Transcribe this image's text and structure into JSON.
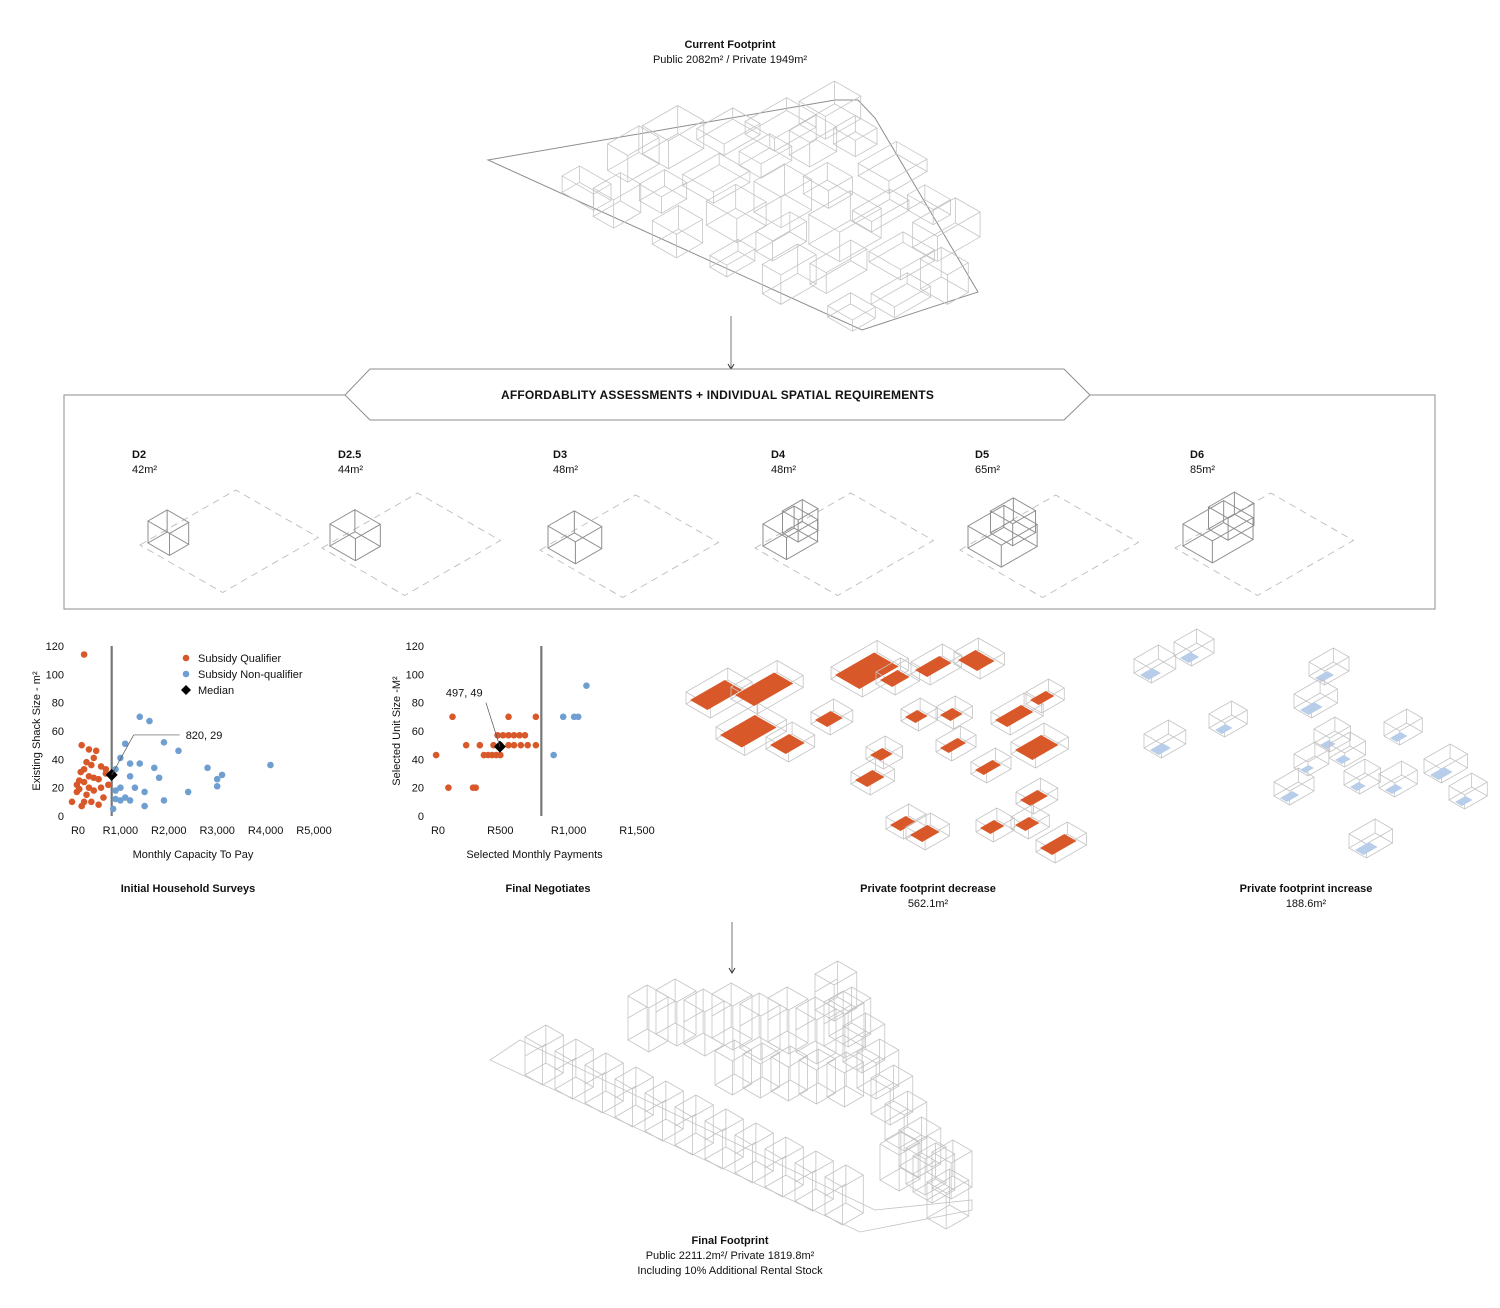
{
  "current_footprint": {
    "title": "Current Footprint",
    "subtitle": "Public 2082m² / Private 1949m²"
  },
  "banner": {
    "title": "AFFORDABLITY ASSESSMENTS + INDIVIDUAL SPATIAL REQUIREMENTS"
  },
  "units": [
    {
      "name": "D2",
      "area": "42m²"
    },
    {
      "name": "D2.5",
      "area": "44m²"
    },
    {
      "name": "D3",
      "area": "48m²"
    },
    {
      "name": "D4",
      "area": "48m²"
    },
    {
      "name": "D5",
      "area": "65m²"
    },
    {
      "name": "D6",
      "area": "85m²"
    }
  ],
  "panels": {
    "initial": {
      "title": "Initial Household Surveys"
    },
    "final": {
      "title": "Final Negotiates"
    },
    "decrease": {
      "title": "Private footprint decrease",
      "value": "562.1m²"
    },
    "increase": {
      "title": "Private footprint increase",
      "value": "188.6m²"
    }
  },
  "final_footprint": {
    "title": "Final Footprint",
    "line1": "Public 2211.2m²/ Private 1819.8m²",
    "line2": "Including 10% Additional Rental Stock"
  },
  "colors": {
    "qualifier": "#d9582a",
    "non_qualifier": "#6f9fd0",
    "median": "#000000",
    "decrease_fill": "#d9582a",
    "increase_fill": "#b8cdea",
    "vline": "#777777"
  },
  "chart_data": [
    {
      "type": "scatter",
      "title": "",
      "xlabel": "Monthly Capacity To Pay",
      "ylabel": "Existing Shack Size - m²",
      "xlim": [
        0,
        5000
      ],
      "ylim": [
        0,
        120
      ],
      "x_ticks": [
        "R0",
        "R1,000",
        "R2,000",
        "R3,000",
        "R4,000",
        "R5,000"
      ],
      "y_ticks": [
        "0",
        "20",
        "40",
        "60",
        "80",
        "100",
        "120"
      ],
      "legend": {
        "position": "top-right",
        "entries": [
          "Subsidy Qualifier",
          "Subsidy Non-qualifier",
          "Median"
        ]
      },
      "vertical_line_x": 820,
      "annotation": "820, 29",
      "series": [
        {
          "name": "Subsidy Qualifier",
          "points": [
            [
              250,
              114
            ],
            [
              200,
              50
            ],
            [
              350,
              47
            ],
            [
              500,
              46
            ],
            [
              450,
              41
            ],
            [
              300,
              38
            ],
            [
              400,
              36
            ],
            [
              250,
              33
            ],
            [
              180,
              31
            ],
            [
              600,
              35
            ],
            [
              350,
              28
            ],
            [
              450,
              27
            ],
            [
              150,
              25
            ],
            [
              250,
              24
            ],
            [
              550,
              26
            ],
            [
              700,
              33
            ],
            [
              100,
              22
            ],
            [
              350,
              20
            ],
            [
              600,
              20
            ],
            [
              150,
              19
            ],
            [
              450,
              18
            ],
            [
              300,
              15
            ],
            [
              650,
              13
            ],
            [
              0,
              10
            ],
            [
              250,
              10
            ],
            [
              400,
              10
            ],
            [
              550,
              8
            ],
            [
              200,
              7
            ],
            [
              700,
              30
            ],
            [
              750,
              22
            ],
            [
              100,
              17
            ]
          ]
        },
        {
          "name": "Subsidy Non-qualifier",
          "points": [
            [
              1400,
              70
            ],
            [
              1600,
              67
            ],
            [
              1100,
              51
            ],
            [
              1900,
              52
            ],
            [
              2200,
              46
            ],
            [
              1000,
              41
            ],
            [
              1200,
              37
            ],
            [
              1400,
              37
            ],
            [
              900,
              33
            ],
            [
              1200,
              28
            ],
            [
              1700,
              34
            ],
            [
              1800,
              27
            ],
            [
              2800,
              34
            ],
            [
              3100,
              29
            ],
            [
              3000,
              26
            ],
            [
              3000,
              21
            ],
            [
              4100,
              36
            ],
            [
              1000,
              20
            ],
            [
              900,
              18
            ],
            [
              1300,
              20
            ],
            [
              1500,
              17
            ],
            [
              2400,
              17
            ],
            [
              1100,
              13
            ],
            [
              1900,
              11
            ],
            [
              1500,
              7
            ],
            [
              900,
              12
            ],
            [
              1000,
              11
            ],
            [
              850,
              5
            ],
            [
              1200,
              11
            ]
          ]
        },
        {
          "name": "Median",
          "points": [
            [
              820,
              29
            ]
          ]
        }
      ]
    },
    {
      "type": "scatter",
      "title": "",
      "xlabel": "Selected Monthly Payments",
      "ylabel": "Selected Unit Size -M²",
      "xlim": [
        0,
        1500
      ],
      "ylim": [
        0,
        120
      ],
      "x_ticks": [
        "R0",
        "R500",
        "R1,000",
        "R1,500"
      ],
      "y_ticks": [
        "0",
        "20",
        "40",
        "60",
        "80",
        "100",
        "120"
      ],
      "vertical_line_x": 800,
      "annotation": "497, 49",
      "series": [
        {
          "name": "Subsidy Qualifier",
          "points": [
            [
              30,
              43
            ],
            [
              120,
              20
            ],
            [
              300,
              20
            ],
            [
              320,
              20
            ],
            [
              250,
              50
            ],
            [
              150,
              70
            ],
            [
              350,
              50
            ],
            [
              380,
              43
            ],
            [
              410,
              43
            ],
            [
              440,
              43
            ],
            [
              470,
              43
            ],
            [
              500,
              43
            ],
            [
              450,
              50
            ],
            [
              480,
              57
            ],
            [
              520,
              57
            ],
            [
              560,
              57
            ],
            [
              600,
              57
            ],
            [
              640,
              57
            ],
            [
              680,
              57
            ],
            [
              500,
              50
            ],
            [
              560,
              50
            ],
            [
              600,
              50
            ],
            [
              650,
              50
            ],
            [
              700,
              50
            ],
            [
              760,
              50
            ],
            [
              560,
              70
            ],
            [
              760,
              70
            ]
          ]
        },
        {
          "name": "Subsidy Non-qualifier",
          "points": [
            [
              1130,
              92
            ],
            [
              960,
              70
            ],
            [
              1040,
              70
            ],
            [
              1070,
              70
            ],
            [
              890,
              43
            ]
          ]
        },
        {
          "name": "Median",
          "points": [
            [
              497,
              49
            ]
          ]
        }
      ]
    }
  ]
}
